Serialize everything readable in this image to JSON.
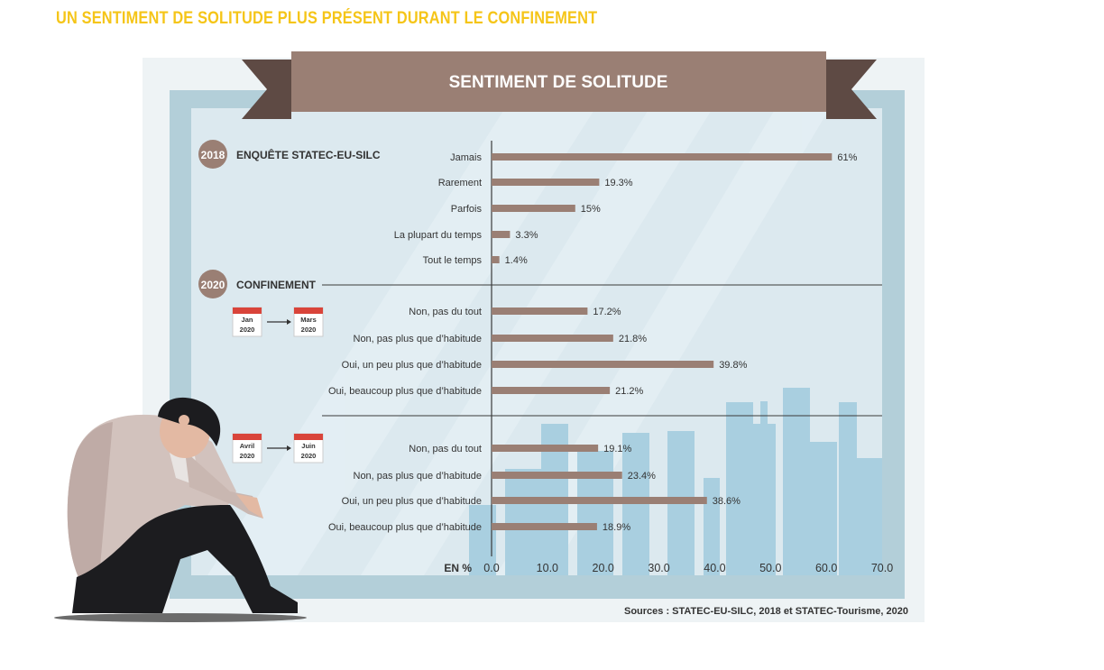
{
  "headline": "UN SENTIMENT DE SOLITUDE PLUS PRÉSENT DURANT LE CONFINEMENT",
  "colors": {
    "headline": "#f5c518",
    "banner": "#9a7f74",
    "banner_tail": "#5e4a44",
    "bar": "#9a7f74",
    "badge": "#9a7f74",
    "calendar": "#d9443a",
    "panel_bg": "#dce9ef",
    "frame": "#b3cfd9",
    "skyline": "#a9cfe0"
  },
  "chart_data": {
    "type": "bar",
    "orientation": "horizontal",
    "title": "SENTIMENT DE SOLITUDE",
    "xlabel": "EN %",
    "xlim": [
      0,
      70
    ],
    "xticks": [
      "0.0",
      "10.0",
      "20.0",
      "30.0",
      "40.0",
      "50.0",
      "60.0",
      "70.0"
    ],
    "grid": false,
    "source": "Sources : STATEC-EU-SILC, 2018 et STATEC-Tourisme, 2020",
    "groups": [
      {
        "badge": "2018",
        "heading": "ENQUÊTE STATEC-EU-SILC",
        "categories": [
          "Jamais",
          "Rarement",
          "Parfois",
          "La plupart du temps",
          "Tout le temps"
        ],
        "values": [
          61,
          19.3,
          15,
          3.3,
          1.4
        ],
        "value_labels": [
          "61%",
          "19.3%",
          "15%",
          "3.3%",
          "1.4%"
        ]
      },
      {
        "badge": "2020",
        "heading": "CONFINEMENT",
        "period_from": [
          "Jan",
          "2020"
        ],
        "period_to": [
          "Mars",
          "2020"
        ],
        "categories": [
          "Non, pas du tout",
          "Non, pas plus que d’habitude",
          "Oui, un peu plus que d’habitude",
          "Oui, beaucoup plus que d’habitude"
        ],
        "values": [
          17.2,
          21.8,
          39.8,
          21.2
        ],
        "value_labels": [
          "17.2%",
          "21.8%",
          "39.8%",
          "21.2%"
        ]
      },
      {
        "period_from": [
          "Avril",
          "2020"
        ],
        "period_to": [
          "Juin",
          "2020"
        ],
        "categories": [
          "Non, pas du tout",
          "Non, pas plus que d’habitude",
          "Oui, un peu plus que d’habitude",
          "Oui, beaucoup plus que d’habitude"
        ],
        "values": [
          19.1,
          23.4,
          38.6,
          18.9
        ],
        "value_labels": [
          "19.1%",
          "23.4%",
          "38.6%",
          "18.9%"
        ]
      }
    ]
  }
}
